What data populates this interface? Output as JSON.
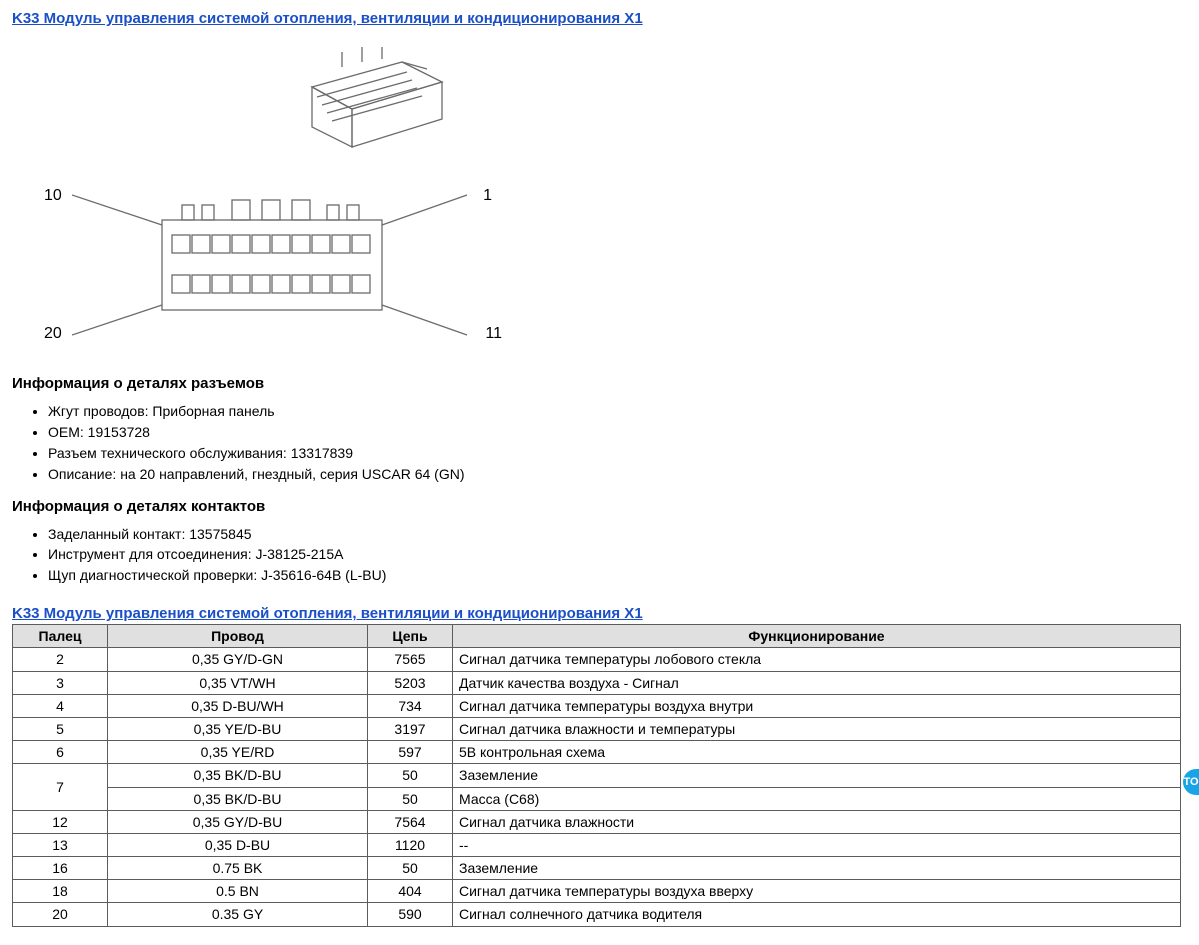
{
  "title": "K33 Модуль управления системой отопления, вентиляции и кондиционирования X1",
  "diagram_flat": {
    "pin_top_left": "10",
    "pin_top_right": "1",
    "pin_bottom_left": "20",
    "pin_bottom_right": "11"
  },
  "connector_info": {
    "heading": "Информация о деталях разъемов",
    "items": [
      "Жгут проводов: Приборная панель",
      "OEM: 19153728",
      "Разъем технического обслуживания: 13317839",
      "Описание: на 20 направлений, гнездный, серия USCAR 64 (GN)"
    ]
  },
  "contact_info": {
    "heading": "Информация о деталях контактов",
    "items": [
      "Заделанный контакт: 13575845",
      "Инструмент для отсоединения: J-38125-215A",
      "Щуп диагностической проверки: J-35616-64B (L-BU)"
    ]
  },
  "table": {
    "title": "K33 Модуль управления системой отопления, вентиляции и кондиционирования X1",
    "columns": [
      "Палец",
      "Провод",
      "Цепь",
      "Функционирование"
    ],
    "rows": [
      {
        "pin": "2",
        "rowspan": 1,
        "wire": "0,35 GY/D-GN",
        "chain": "7565",
        "func": "Сигнал датчика температуры лобового стекла"
      },
      {
        "pin": "3",
        "rowspan": 1,
        "wire": "0,35 VT/WH",
        "chain": "5203",
        "func": "Датчик качества воздуха - Сигнал"
      },
      {
        "pin": "4",
        "rowspan": 1,
        "wire": "0,35 D-BU/WH",
        "chain": "734",
        "func": "Сигнал датчика температуры воздуха внутри"
      },
      {
        "pin": "5",
        "rowspan": 1,
        "wire": "0,35 YE/D-BU",
        "chain": "3197",
        "func": "Сигнал датчика влажности и температуры"
      },
      {
        "pin": "6",
        "rowspan": 1,
        "wire": "0,35 YE/RD",
        "chain": "597",
        "func": "5В контрольная схема"
      },
      {
        "pin": "7",
        "rowspan": 2,
        "wire": "0,35 BK/D-BU",
        "chain": "50",
        "func": "Заземление"
      },
      {
        "pin": "",
        "rowspan": 0,
        "wire": "0,35 BK/D-BU",
        "chain": "50",
        "func": "Масса (C68)"
      },
      {
        "pin": "12",
        "rowspan": 1,
        "wire": "0,35 GY/D-BU",
        "chain": "7564",
        "func": "Сигнал датчика влажности"
      },
      {
        "pin": "13",
        "rowspan": 1,
        "wire": "0,35 D-BU",
        "chain": "1120",
        "func": "--"
      },
      {
        "pin": "16",
        "rowspan": 1,
        "wire": "0.75 BK",
        "chain": "50",
        "func": "Заземление"
      },
      {
        "pin": "18",
        "rowspan": 1,
        "wire": "0.5 BN",
        "chain": "404",
        "func": "Сигнал датчика температуры воздуха вверху"
      },
      {
        "pin": "20",
        "rowspan": 1,
        "wire": "0.35 GY",
        "chain": "590",
        "func": "Сигнал солнечного датчика водителя"
      }
    ]
  },
  "side_badge": "TO"
}
